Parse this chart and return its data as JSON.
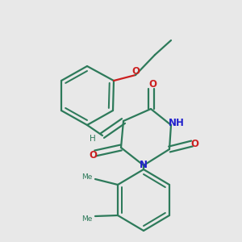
{
  "bg_color": "#e8e8e8",
  "bond_color": "#2d7a5a",
  "N_color": "#2020cc",
  "O_color": "#cc2020",
  "figsize": [
    3.0,
    3.0
  ],
  "dpi": 100,
  "xlim": [
    0,
    300
  ],
  "ylim": [
    0,
    300
  ]
}
